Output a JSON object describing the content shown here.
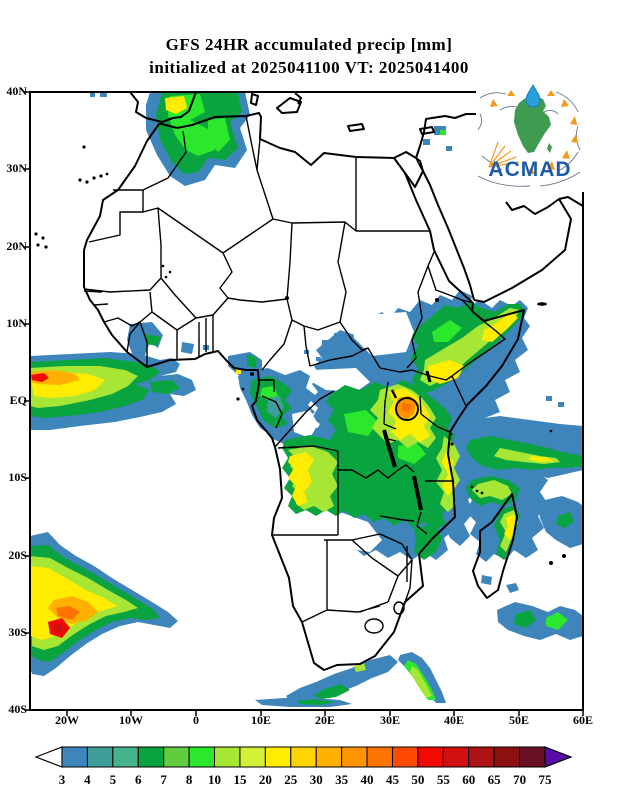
{
  "title": {
    "line1": "GFS 24HR accumulated precip [mm]",
    "line2": "initialized at 2025041100 VT: 2025041400"
  },
  "axes": {
    "y": [
      "40N",
      "30N",
      "20N",
      "10N",
      "EQ",
      "10S",
      "20S",
      "30S",
      "40S"
    ],
    "x": [
      "20W",
      "10W",
      "0",
      "10E",
      "20E",
      "30E",
      "40E",
      "50E",
      "60E"
    ]
  },
  "colorbar": {
    "labels": [
      "3",
      "4",
      "5",
      "6",
      "7",
      "8",
      "10",
      "15",
      "20",
      "25",
      "30",
      "35",
      "40",
      "45",
      "50",
      "55",
      "60",
      "65",
      "70",
      "75"
    ],
    "colors": [
      "#3E85BC",
      "#3F9E99",
      "#44B48A",
      "#09A43F",
      "#62CC3F",
      "#2CE82C",
      "#A8E636",
      "#D4F038",
      "#FFEC00",
      "#FFD400",
      "#FFB000",
      "#FF9400",
      "#FF7300",
      "#FF4A00",
      "#F00A00",
      "#D01010",
      "#AE1212",
      "#8C1010",
      "#6A1025"
    ],
    "arrow_left_color": "#FFFFFF",
    "arrow_right_color": "#5B0DA8"
  },
  "logo": {
    "text": "ACMAD",
    "text_color": "#1D5BA7",
    "africa_color": "#3E9B4F",
    "drop_color": "#2AA0DB",
    "accent_color": "#F59A1D"
  }
}
